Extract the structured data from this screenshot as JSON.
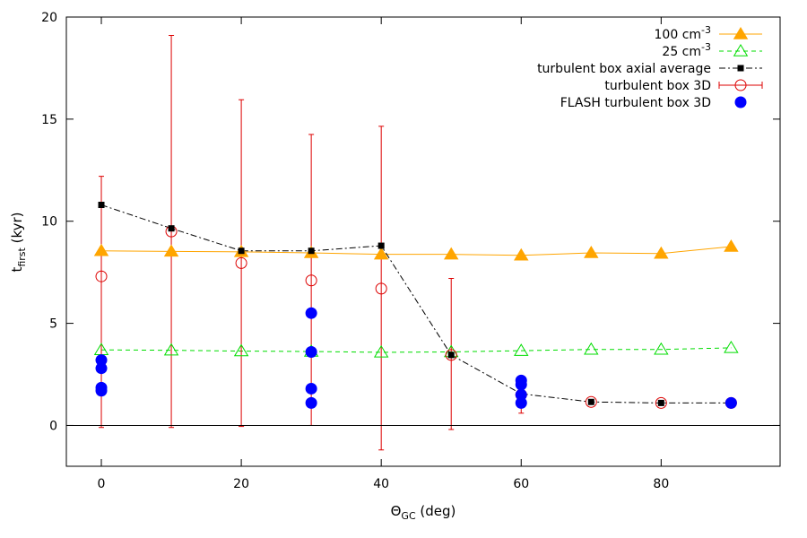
{
  "chart_data": {
    "type": "scatter",
    "title": "",
    "xlabel": "Θ",
    "xlabel_sub": "GC",
    "xlabel_unit": " (deg)",
    "ylabel": "t",
    "ylabel_sub": "first",
    "ylabel_unit": " (kyr)",
    "xlim": [
      -5,
      97
    ],
    "ylim": [
      -2,
      20
    ],
    "xticks": [
      0,
      20,
      40,
      60,
      80
    ],
    "yticks": [
      0,
      5,
      10,
      15,
      20
    ],
    "zero_line": true,
    "grid": false,
    "legend_position": "top-right",
    "series": [
      {
        "name": "100 cm",
        "name_sup": "-3",
        "style": "line-filled-triangle",
        "color": "#FFA500",
        "x": [
          0,
          10,
          20,
          30,
          40,
          50,
          60,
          70,
          80,
          90
        ],
        "y": [
          8.55,
          8.52,
          8.5,
          8.45,
          8.38,
          8.38,
          8.33,
          8.45,
          8.42,
          8.76
        ]
      },
      {
        "name": "25 cm",
        "name_sup": "-3",
        "style": "dashed-open-triangle",
        "color": "#00DD00",
        "x": [
          0,
          10,
          20,
          30,
          40,
          50,
          60,
          70,
          80,
          90
        ],
        "y": [
          3.7,
          3.68,
          3.64,
          3.62,
          3.58,
          3.6,
          3.66,
          3.72,
          3.72,
          3.8
        ]
      },
      {
        "name": "turbulent box axial average",
        "style": "dashdot-filled-square",
        "color": "#000000",
        "x": [
          0,
          10,
          20,
          30,
          40,
          50,
          60,
          70,
          80,
          90
        ],
        "y": [
          10.8,
          9.65,
          8.55,
          8.55,
          8.8,
          3.45,
          1.55,
          1.15,
          1.1,
          1.1
        ]
      },
      {
        "name": "turbulent box 3D",
        "style": "open-circle-errorbar",
        "color": "#DD0000",
        "x": [
          0,
          10,
          20,
          30,
          40,
          50,
          60,
          70,
          80,
          90
        ],
        "y": [
          7.3,
          9.5,
          7.95,
          7.1,
          6.7,
          3.45,
          1.5,
          1.15,
          1.1,
          1.1
        ],
        "ylow": [
          -0.1,
          -0.1,
          -0.05,
          0.0,
          -1.2,
          -0.2,
          0.6,
          1.15,
          1.1,
          1.1
        ],
        "yhigh": [
          12.2,
          19.1,
          15.95,
          14.25,
          14.65,
          7.2,
          2.4,
          1.15,
          1.1,
          1.1
        ]
      },
      {
        "name": "FLASH turbulent box 3D",
        "style": "filled-circle",
        "color": "#0000FF",
        "x": [
          0,
          0,
          0,
          0,
          30,
          30,
          30,
          30,
          60,
          60,
          60,
          60,
          90
        ],
        "y": [
          1.7,
          1.85,
          2.8,
          3.2,
          5.5,
          3.6,
          1.8,
          1.1,
          1.1,
          1.5,
          2.0,
          2.2,
          1.1
        ]
      }
    ]
  }
}
